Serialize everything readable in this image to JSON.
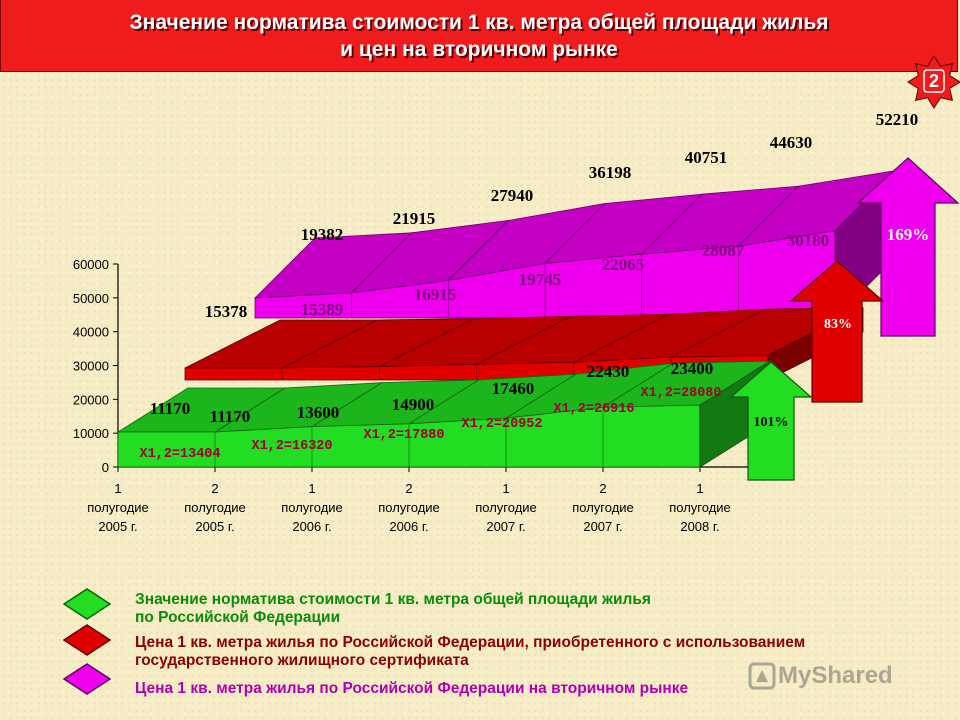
{
  "header": {
    "title_line1": "Значение норматива стоимости 1 кв. метра общей площади жилья",
    "title_line2": "и цен на вторичном рынке"
  },
  "badge": {
    "number": "2"
  },
  "colors": {
    "green": "#22dd22",
    "red": "#e00000",
    "magenta": "#ee00ee",
    "header": "#ee1c1c"
  },
  "chart_data": {
    "type": "area",
    "categories": [
      [
        "1",
        "полугодие",
        "2005 г."
      ],
      [
        "2",
        "полугодие",
        "2005 г."
      ],
      [
        "1",
        "полугодие",
        "2006 г."
      ],
      [
        "2",
        "полугодие",
        "2006 г."
      ],
      [
        "1",
        "полугодие",
        "2007 г."
      ],
      [
        "2",
        "полугодие",
        "2007 г."
      ],
      [
        "1",
        "полугодие",
        "2008 г."
      ]
    ],
    "y_ticks": [
      "0",
      "10000",
      "20000",
      "30000",
      "40000",
      "50000",
      "60000"
    ],
    "ylim": [
      0,
      60000
    ],
    "series": [
      {
        "name": "Значение норматива стоимости 1 кв. метра общей площади жилья по Российской Федерации",
        "color": "#22dd22",
        "values": [
          11170,
          11170,
          13600,
          14900,
          17460,
          22430,
          23400
        ],
        "labels": [
          "11170",
          "11170",
          "13600",
          "14900",
          "17460",
          "22430",
          "23400"
        ],
        "multipliers": [
          "X1,2=13404",
          "X1,2=16320",
          "X1,2=17880",
          "X1,2=20952",
          "X1,2=26916",
          "X1,2=28080"
        ],
        "growth_label": "101%"
      },
      {
        "name": "Цена 1 кв. метра жилья по Российской Федерации, приобретенного с использованием государственного жилищного сертификата",
        "color": "#e00000",
        "values": [
          15378,
          15389,
          16915,
          19745,
          22065,
          28087,
          30180
        ],
        "labels": [
          "15378",
          "15389",
          "16915",
          "19745",
          "22065",
          "28087",
          "30180"
        ],
        "growth_label": "83%"
      },
      {
        "name": "Цена 1 кв. метра жилья по Российской Федерации на вторичном рынке",
        "color": "#ee00ee",
        "values": [
          19382,
          21915,
          27940,
          36198,
          40751,
          44630,
          52210
        ],
        "labels": [
          "19382",
          "21915",
          "27940",
          "36198",
          "40751",
          "44630",
          "52210"
        ],
        "growth_label": "169%"
      }
    ]
  },
  "legend": {
    "green_line1": "Значение норматива стоимости 1 кв. метра общей площади жилья",
    "green_line2": "по Российской Федерации",
    "red_line1": "Цена 1 кв. метра жилья по Российской Федерации, приобретенного с использованием",
    "red_line2": "государственного жилищного сертификата",
    "magenta_line1": "Цена 1 кв. метра жилья по Российской Федерации на вторичном рынке"
  },
  "watermark": "MyShared"
}
